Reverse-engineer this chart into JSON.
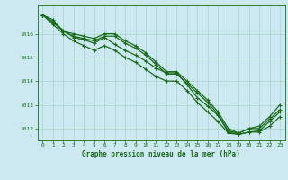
{
  "title": "Graphe pression niveau de la mer (hPa)",
  "background_color": "#cce8f0",
  "grid_color": "#aad4cc",
  "line_color": "#1a6b1a",
  "xlim": [
    -0.5,
    23.5
  ],
  "ylim": [
    1011.5,
    1017.2
  ],
  "yticks": [
    1012,
    1013,
    1014,
    1015,
    1016
  ],
  "xticks": [
    0,
    1,
    2,
    3,
    4,
    5,
    6,
    7,
    8,
    9,
    10,
    11,
    12,
    13,
    14,
    15,
    16,
    17,
    18,
    19,
    20,
    21,
    22,
    23
  ],
  "series": [
    [
      1016.8,
      1016.6,
      1016.1,
      1016.0,
      1015.9,
      1015.8,
      1016.0,
      1016.0,
      1015.7,
      1015.5,
      1015.2,
      1014.8,
      1014.4,
      1014.4,
      1014.0,
      1013.6,
      1013.2,
      1012.7,
      1012.0,
      1011.8,
      1012.0,
      1012.1,
      1012.5,
      1013.0
    ],
    [
      1016.8,
      1016.5,
      1016.1,
      1015.9,
      1015.8,
      1015.7,
      1015.9,
      1015.9,
      1015.6,
      1015.4,
      1015.1,
      1014.7,
      1014.3,
      1014.3,
      1013.9,
      1013.5,
      1013.1,
      1012.6,
      1011.9,
      1011.8,
      1012.0,
      1012.0,
      1012.4,
      1012.8
    ],
    [
      1016.8,
      1016.5,
      1016.15,
      1015.85,
      1015.75,
      1015.6,
      1015.85,
      1015.55,
      1015.3,
      1015.1,
      1014.85,
      1014.55,
      1014.35,
      1014.35,
      1013.85,
      1013.3,
      1012.95,
      1012.55,
      1011.85,
      1011.75,
      1011.85,
      1011.9,
      1012.3,
      1012.7
    ],
    [
      1016.8,
      1016.4,
      1016.0,
      1015.7,
      1015.5,
      1015.3,
      1015.5,
      1015.3,
      1015.0,
      1014.8,
      1014.5,
      1014.2,
      1014.0,
      1014.0,
      1013.6,
      1013.1,
      1012.7,
      1012.3,
      1011.8,
      1011.75,
      1011.85,
      1011.85,
      1012.1,
      1012.5
    ]
  ]
}
